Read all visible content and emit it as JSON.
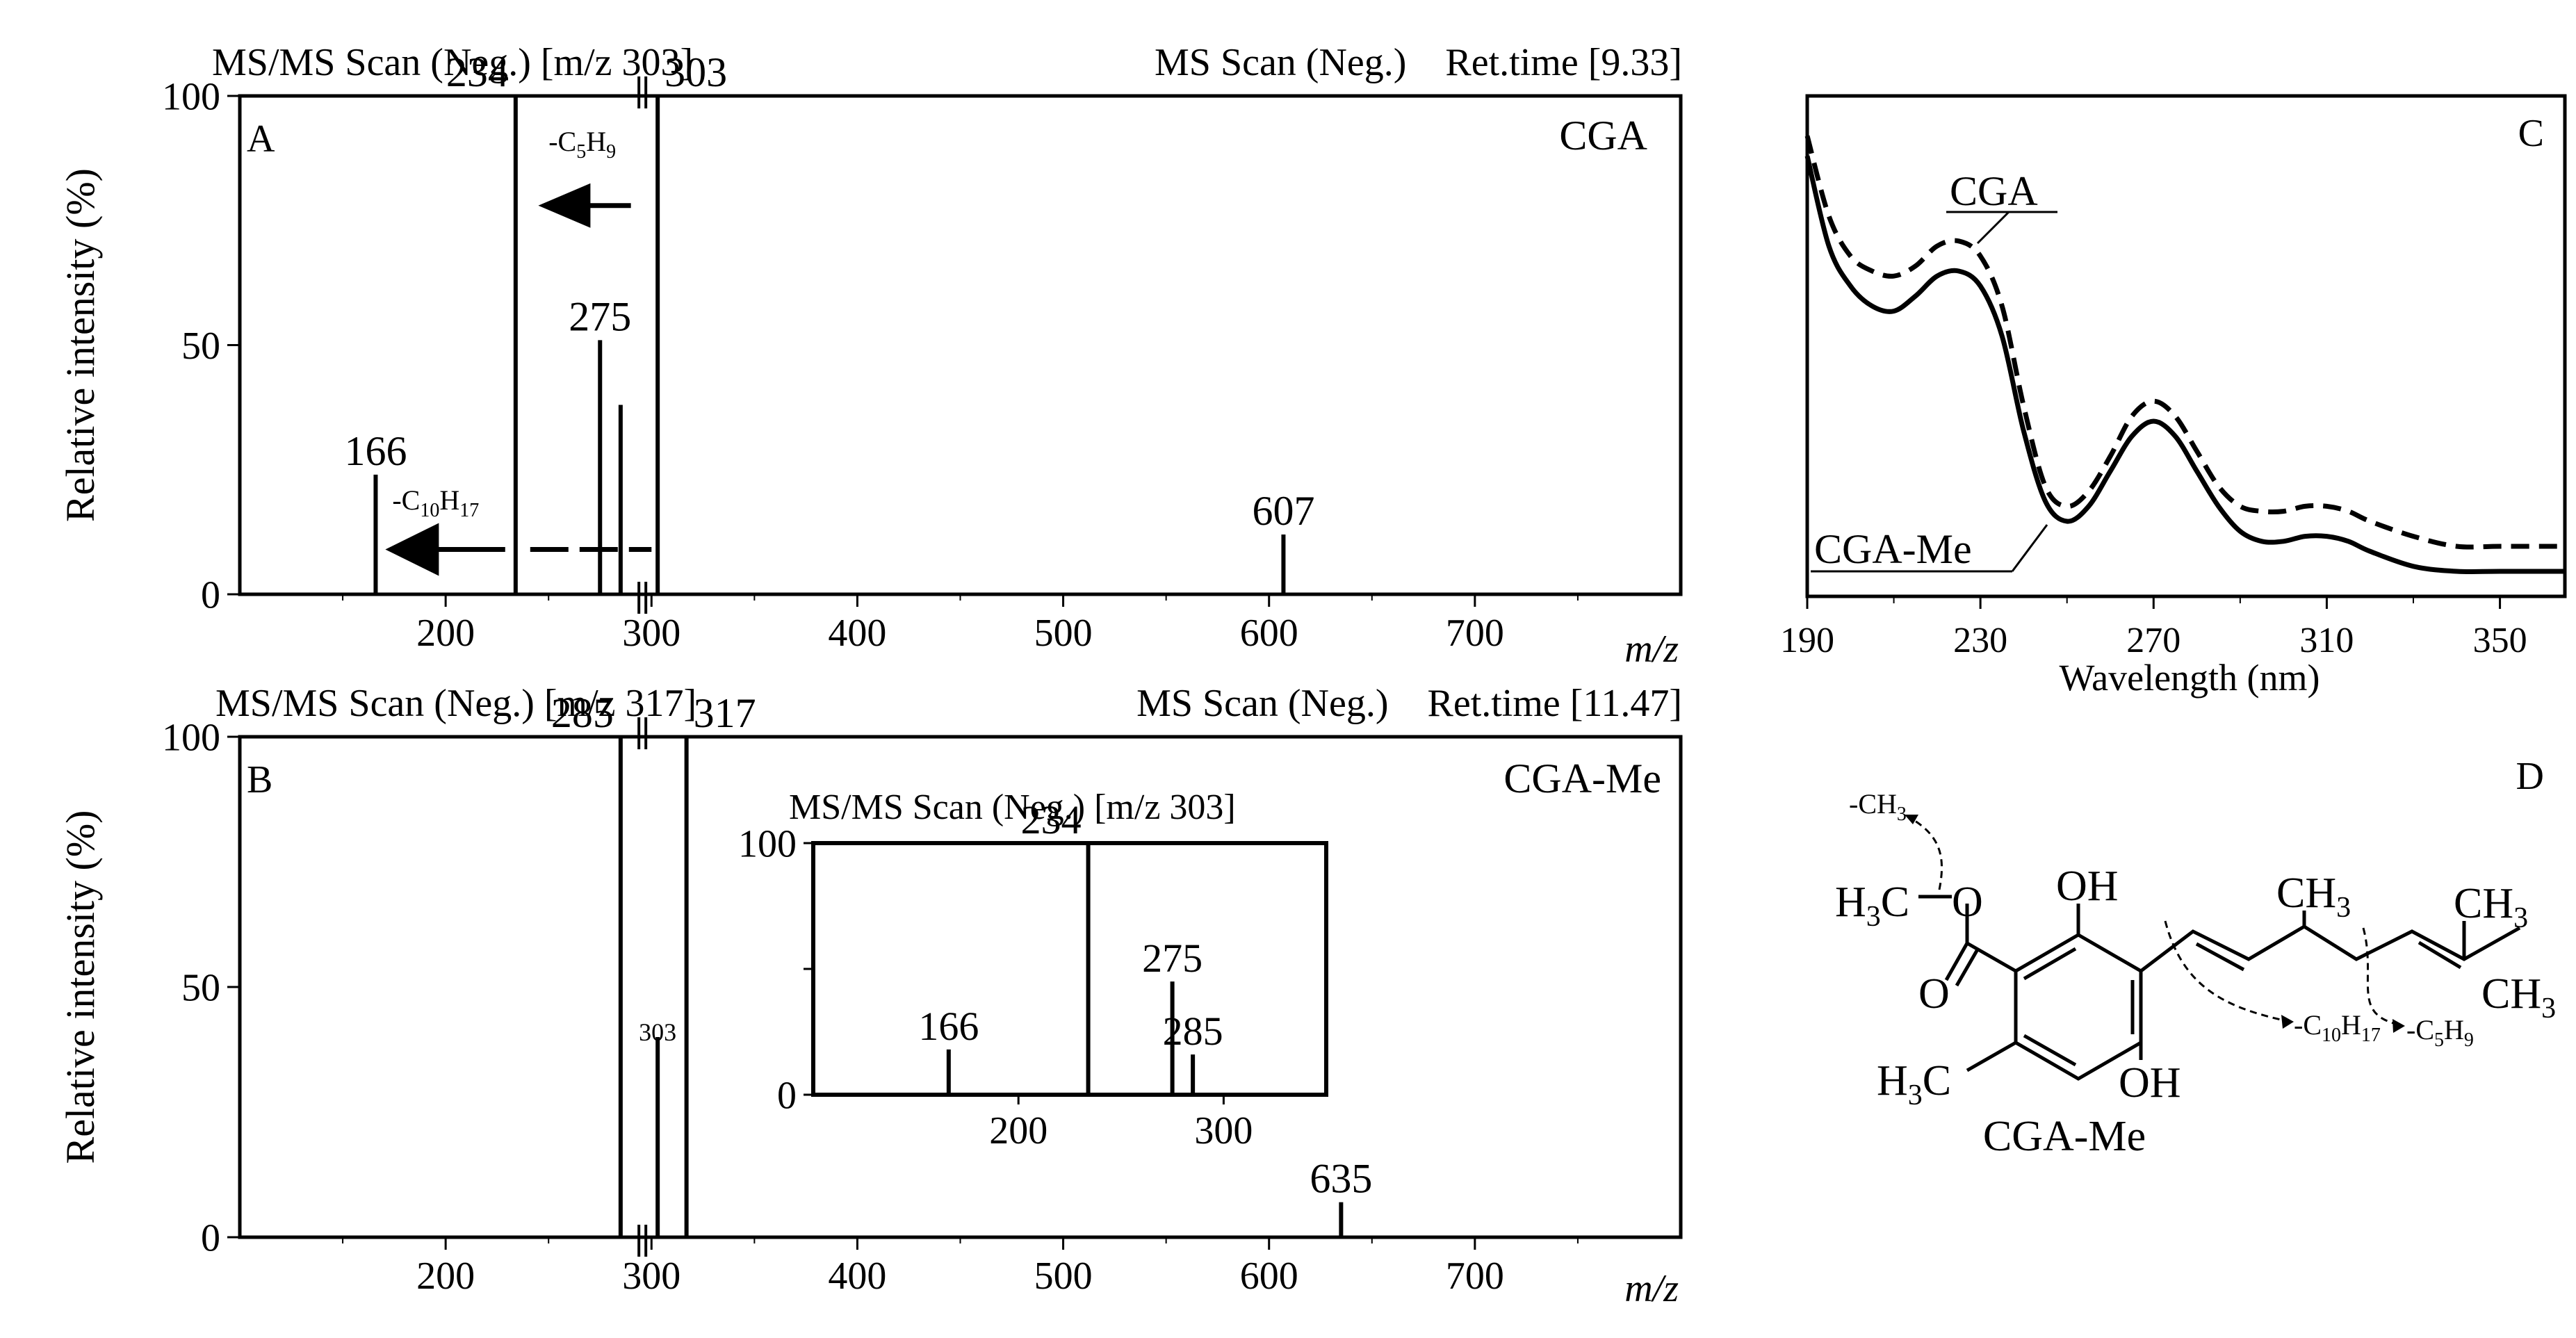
{
  "chart_data": [
    {
      "panel": "A",
      "type": "bar",
      "header_left": "MS/MS Scan (Neg.) [m/z 303]",
      "header_right": "MS Scan (Neg.)    Ret.time [9.33]",
      "compound": "CGA",
      "ylabel": "Relative intensity (%)",
      "xlabel": "m/z",
      "ylim": [
        0,
        100
      ],
      "xlim": [
        100,
        800
      ],
      "y_ticks": [
        0,
        50,
        100
      ],
      "x_ticks": [
        200,
        300,
        400,
        500,
        600,
        700
      ],
      "axis_break_at": 303,
      "peaks": [
        {
          "mz": 166,
          "intensity": 24,
          "label": "166"
        },
        {
          "mz": 234,
          "intensity": 100,
          "label": "234"
        },
        {
          "mz": 275,
          "intensity": 51,
          "label": "275"
        },
        {
          "mz": 285,
          "intensity": 38,
          "label": ""
        },
        {
          "mz": 303,
          "intensity": 100,
          "label": "303"
        },
        {
          "mz": 607,
          "intensity": 12,
          "label": "607"
        }
      ],
      "annotations": [
        {
          "text_main": "-C",
          "sub1": "5",
          "mid": "H",
          "sub2": "9",
          "arrow_from": 290,
          "arrow_to": 245,
          "y": 78
        },
        {
          "text_main": "-C",
          "sub1": "10",
          "mid": "H",
          "sub2": "17",
          "arrow_from": 300,
          "arrow_to": 168,
          "y": 9
        }
      ]
    },
    {
      "panel": "B",
      "type": "bar",
      "header_left": "MS/MS Scan (Neg.) [m/z 317]",
      "header_right": "MS Scan (Neg.)    Ret.time [11.47]",
      "compound": "CGA-Me",
      "ylabel": "Relative intensity (%)",
      "xlabel": "m/z",
      "ylim": [
        0,
        100
      ],
      "xlim": [
        100,
        800
      ],
      "y_ticks": [
        0,
        50,
        100
      ],
      "x_ticks": [
        200,
        300,
        400,
        500,
        600,
        700
      ],
      "axis_break_at": 303,
      "peaks": [
        {
          "mz": 285,
          "intensity": 100,
          "label": "285"
        },
        {
          "mz": 303,
          "intensity": 40,
          "label": "303"
        },
        {
          "mz": 317,
          "intensity": 100,
          "label": "317"
        },
        {
          "mz": 635,
          "intensity": 7,
          "label": "635"
        }
      ]
    },
    {
      "panel": "B-inset",
      "type": "bar",
      "header": "MS/MS Scan (Neg.) [m/z 303]",
      "ylim": [
        0,
        100
      ],
      "xlim": [
        100,
        350
      ],
      "y_ticks": [
        0,
        100
      ],
      "x_ticks": [
        200,
        300
      ],
      "peaks": [
        {
          "mz": 166,
          "intensity": 18,
          "label": "166"
        },
        {
          "mz": 234,
          "intensity": 100,
          "label": "234"
        },
        {
          "mz": 275,
          "intensity": 45,
          "label": "275"
        },
        {
          "mz": 285,
          "intensity": 16,
          "label": "285"
        }
      ]
    },
    {
      "panel": "C",
      "type": "line",
      "xlabel": "Wavelength (nm)",
      "xlim": [
        190,
        365
      ],
      "x_ticks": [
        190,
        230,
        270,
        310,
        350
      ],
      "ylim": [
        0,
        1
      ],
      "series": [
        {
          "name": "CGA",
          "style": "dashed",
          "x": [
            190,
            195,
            200,
            205,
            210,
            215,
            220,
            225,
            230,
            235,
            240,
            245,
            250,
            255,
            260,
            265,
            270,
            275,
            280,
            285,
            290,
            295,
            300,
            305,
            310,
            315,
            320,
            330,
            340,
            350,
            365
          ],
          "values": [
            0.92,
            0.76,
            0.68,
            0.65,
            0.64,
            0.66,
            0.7,
            0.71,
            0.68,
            0.58,
            0.38,
            0.22,
            0.18,
            0.21,
            0.28,
            0.36,
            0.39,
            0.36,
            0.29,
            0.22,
            0.18,
            0.17,
            0.17,
            0.18,
            0.18,
            0.17,
            0.15,
            0.12,
            0.1,
            0.1,
            0.1
          ]
        },
        {
          "name": "CGA-Me",
          "style": "solid",
          "x": [
            190,
            195,
            200,
            205,
            210,
            215,
            220,
            225,
            230,
            235,
            240,
            245,
            250,
            255,
            260,
            265,
            270,
            275,
            280,
            285,
            290,
            295,
            300,
            305,
            310,
            315,
            320,
            330,
            340,
            350,
            365
          ],
          "values": [
            0.88,
            0.7,
            0.62,
            0.58,
            0.57,
            0.6,
            0.64,
            0.65,
            0.62,
            0.52,
            0.33,
            0.19,
            0.15,
            0.18,
            0.25,
            0.32,
            0.35,
            0.32,
            0.25,
            0.18,
            0.13,
            0.11,
            0.11,
            0.12,
            0.12,
            0.11,
            0.09,
            0.06,
            0.05,
            0.05,
            0.05
          ]
        }
      ],
      "panel_label": "C"
    }
  ],
  "structure": {
    "panel_label": "D",
    "name": "CGA-Me",
    "groups": {
      "methyl_loss": "-CH",
      "methyl_loss_sub": "3",
      "h3c_top": "H",
      "h3c_top_sub": "3",
      "h3c_top_c": "C",
      "oxygen": "O",
      "oh_top": "OH",
      "ch3_mid": "CH",
      "ch3_mid_sub": "3",
      "ch3_right_top": "CH",
      "ch3_right_top_sub": "3",
      "ch3_right_bot": "CH",
      "ch3_right_bot_sub": "3",
      "carbonyl_o": "O",
      "h3c_bot": "H",
      "h3c_bot_sub": "3",
      "h3c_bot_c": "C",
      "oh_bot": "OH",
      "loss1": "-C",
      "loss1_sub": "10",
      "loss1_h": "H",
      "loss1_hsub": "17",
      "loss2": "-C",
      "loss2_sub": "5",
      "loss2_h": "H",
      "loss2_hsub": "9"
    }
  }
}
